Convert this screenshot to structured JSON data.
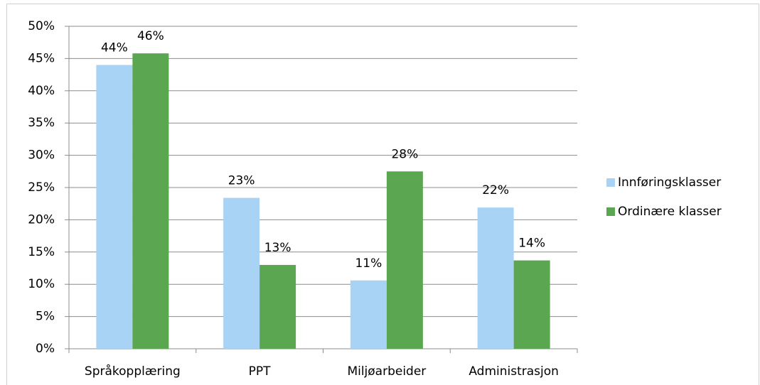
{
  "chart_data": {
    "type": "bar",
    "categories": [
      "Språkopplæring",
      "PPT",
      "Miljøarbeider",
      "Administrasjon"
    ],
    "series": [
      {
        "name": "Innføringsklasser",
        "color": "#a9d3f5",
        "values": [
          44,
          23.4,
          10.6,
          21.9
        ],
        "value_labels": [
          "44%",
          "23%",
          "11%",
          "22%"
        ]
      },
      {
        "name": "Ordinære klasser",
        "color": "#5aa651",
        "values": [
          45.8,
          13,
          27.5,
          13.7
        ],
        "value_labels": [
          "46%",
          "13%",
          "28%",
          "14%"
        ]
      }
    ],
    "ylim": [
      0,
      50
    ],
    "yticks": [
      {
        "value": 0,
        "label": "0%"
      },
      {
        "value": 5,
        "label": "5%"
      },
      {
        "value": 10,
        "label": "10%"
      },
      {
        "value": 15,
        "label": "15%"
      },
      {
        "value": 20,
        "label": "20%"
      },
      {
        "value": 25,
        "label": "25%"
      },
      {
        "value": 30,
        "label": "30%"
      },
      {
        "value": 35,
        "label": "35%"
      },
      {
        "value": 40,
        "label": "40%"
      },
      {
        "value": 45,
        "label": "45%"
      },
      {
        "value": 50,
        "label": "50%"
      }
    ],
    "grid": true,
    "legend": "right"
  }
}
